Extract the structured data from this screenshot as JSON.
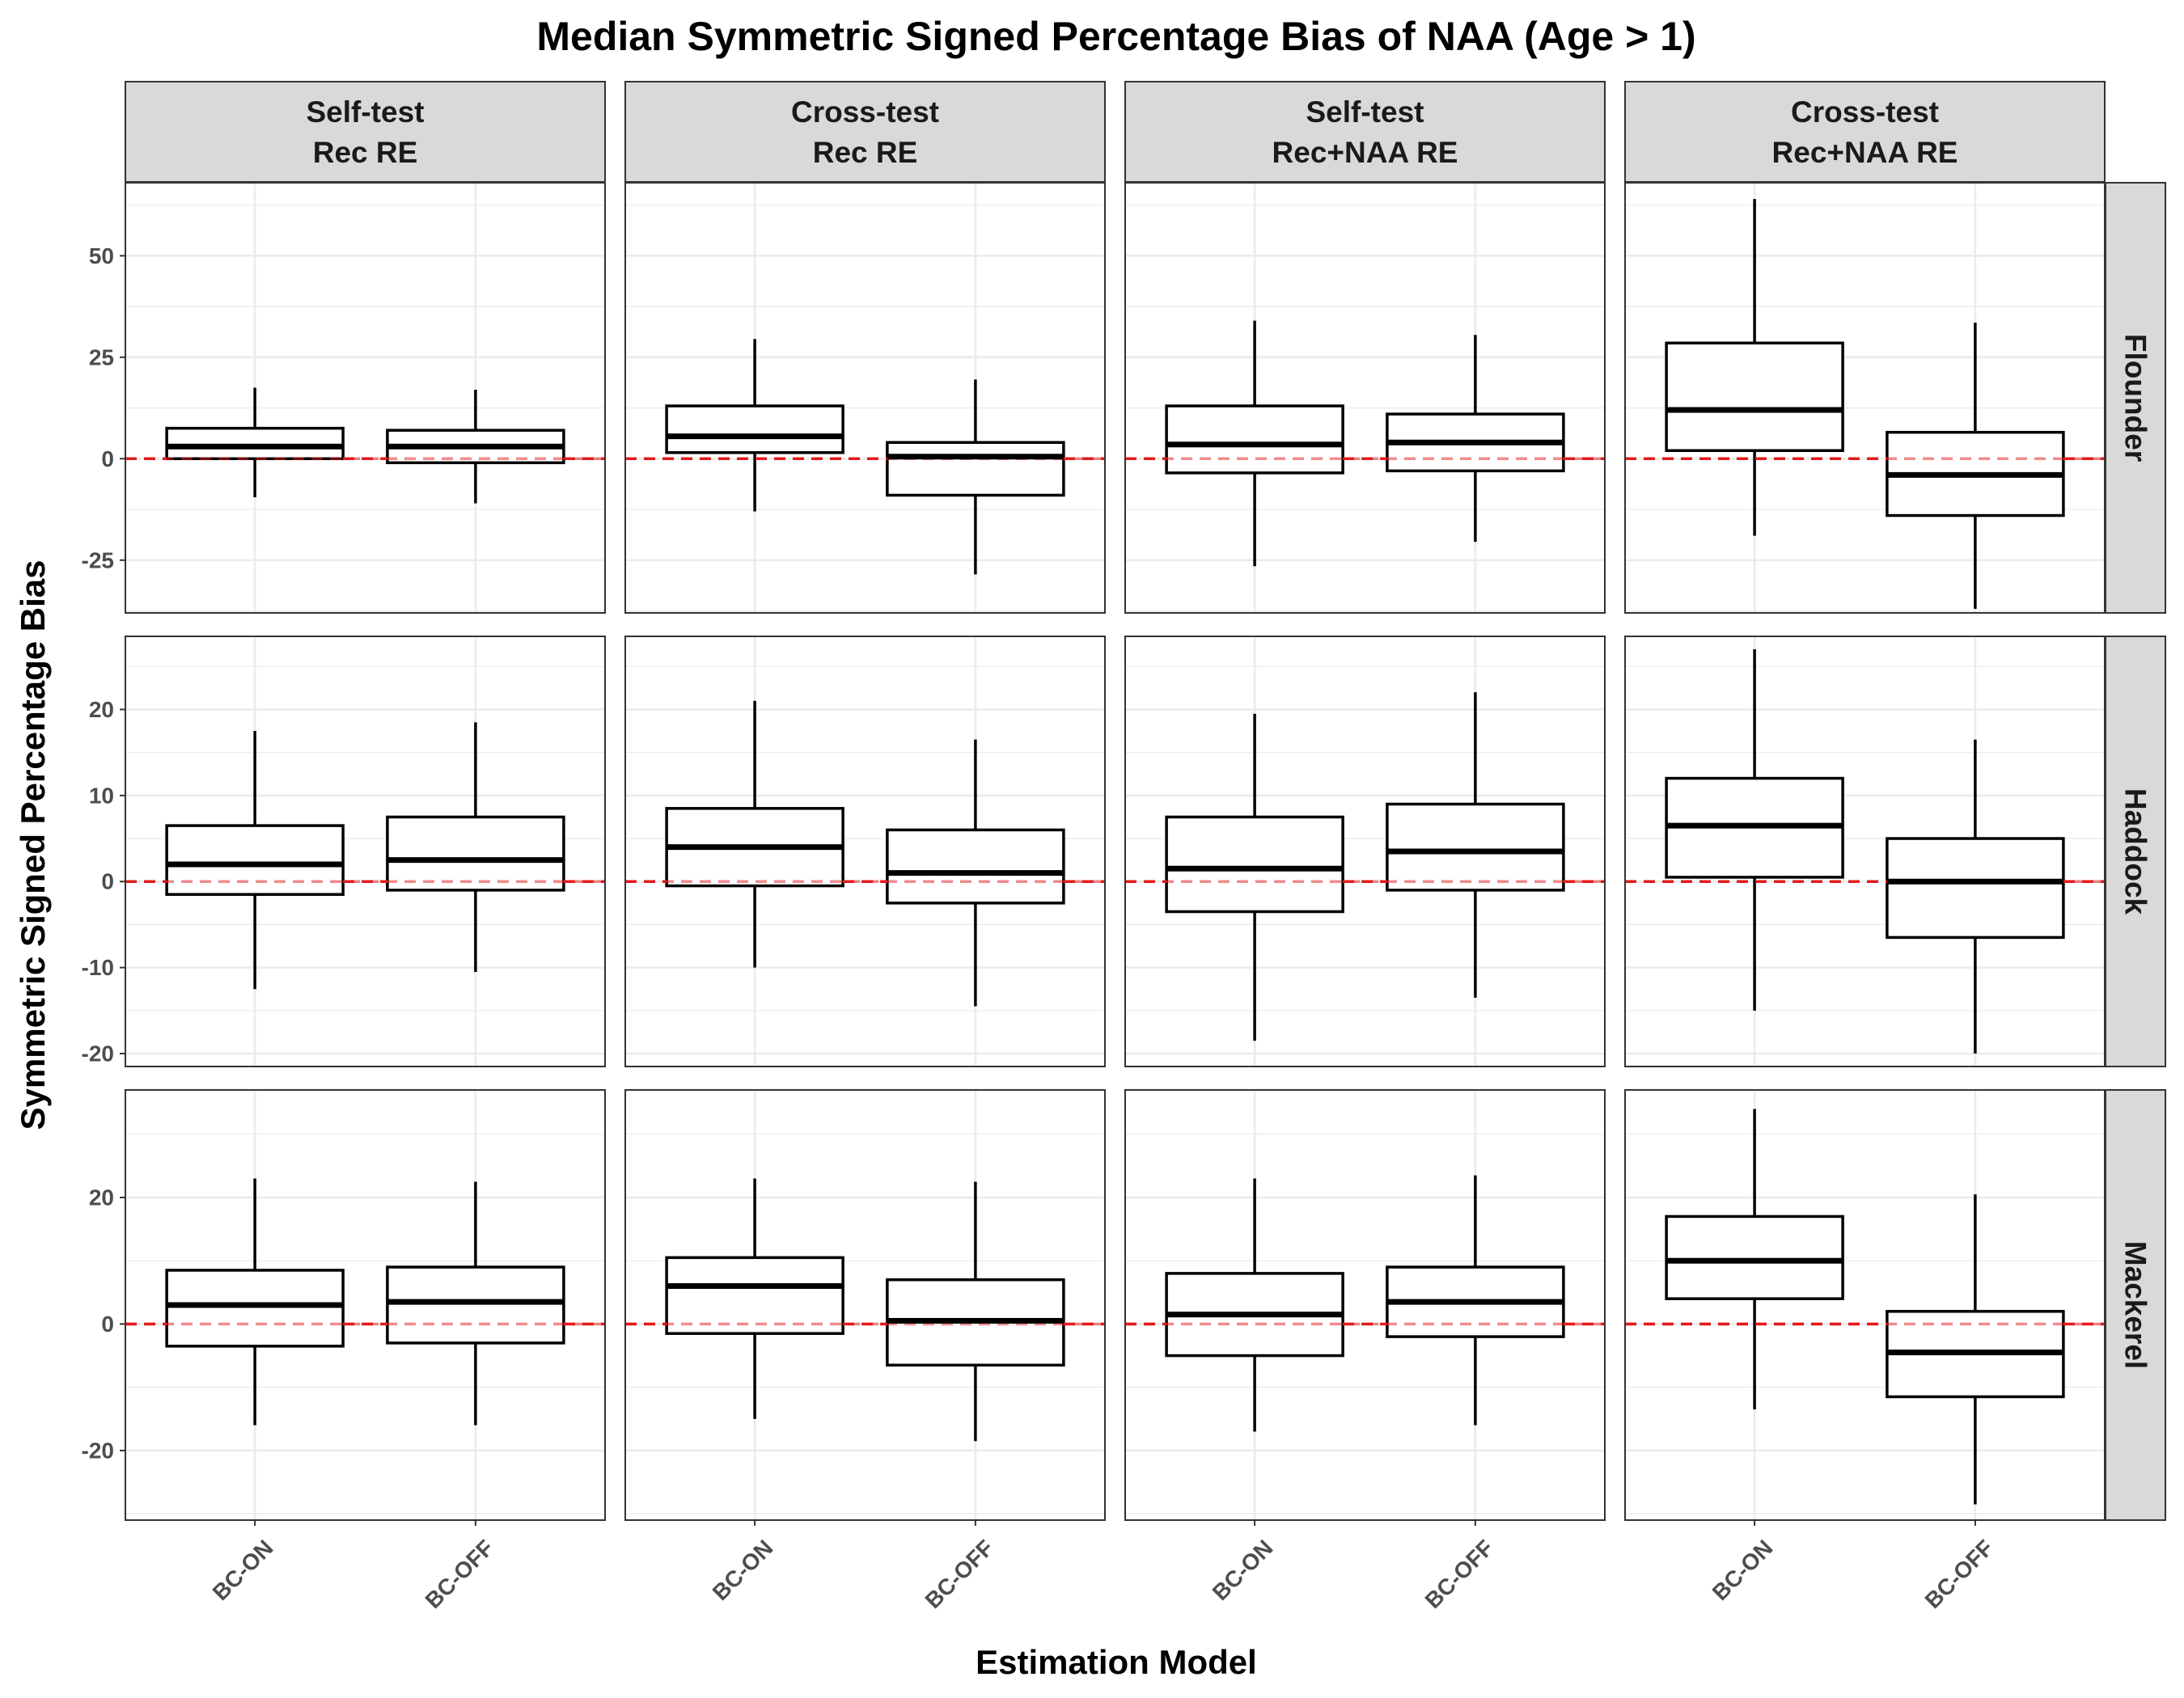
{
  "chart_data": {
    "type": "boxplot",
    "title": "Median Symmetric Signed Percentage Bias of NAA (Age > 1)",
    "xlabel": "Estimation Model",
    "ylabel": "Symmetric Signed Percentage Bias",
    "categories": [
      "BC-ON",
      "BC-OFF"
    ],
    "columns": [
      {
        "line1": "Self-test",
        "line2": "Rec RE"
      },
      {
        "line1": "Cross-test",
        "line2": "Rec RE"
      },
      {
        "line1": "Self-test",
        "line2": "Rec+NAA RE"
      },
      {
        "line1": "Cross-test",
        "line2": "Rec+NAA RE"
      }
    ],
    "rows": [
      {
        "name": "Flounder",
        "ylim": [
          -38,
          68
        ],
        "ticks": [
          -25,
          0,
          25,
          50
        ],
        "boxes": [
          [
            {
              "whisker_low": -9.5,
              "q1": 0,
              "median": 3,
              "q3": 7.5,
              "whisker_high": 17.5
            },
            {
              "whisker_low": -11,
              "q1": -1,
              "median": 3,
              "q3": 7,
              "whisker_high": 17
            }
          ],
          [
            {
              "whisker_low": -13,
              "q1": 1.5,
              "median": 5.5,
              "q3": 13,
              "whisker_high": 29.5
            },
            {
              "whisker_low": -28.5,
              "q1": -9,
              "median": 0.5,
              "q3": 4,
              "whisker_high": 19.5
            }
          ],
          [
            {
              "whisker_low": -26.5,
              "q1": -3.5,
              "median": 3.5,
              "q3": 13,
              "whisker_high": 34
            },
            {
              "whisker_low": -20.5,
              "q1": -3,
              "median": 4,
              "q3": 11,
              "whisker_high": 30.5
            }
          ],
          [
            {
              "whisker_low": -19,
              "q1": 2,
              "median": 12,
              "q3": 28.5,
              "whisker_high": 64
            },
            {
              "whisker_low": -37,
              "q1": -14,
              "median": -4,
              "q3": 6.5,
              "whisker_high": 33.5
            }
          ]
        ]
      },
      {
        "name": "Haddock",
        "ylim": [
          -21.5,
          28.5
        ],
        "ticks": [
          -20,
          -10,
          0,
          10,
          20
        ],
        "boxes": [
          [
            {
              "whisker_low": -12.5,
              "q1": -1.5,
              "median": 2,
              "q3": 6.5,
              "whisker_high": 17.5
            },
            {
              "whisker_low": -10.5,
              "q1": -1,
              "median": 2.5,
              "q3": 7.5,
              "whisker_high": 18.5
            }
          ],
          [
            {
              "whisker_low": -10,
              "q1": -0.5,
              "median": 4,
              "q3": 8.5,
              "whisker_high": 21
            },
            {
              "whisker_low": -14.5,
              "q1": -2.5,
              "median": 1,
              "q3": 6,
              "whisker_high": 16.5
            }
          ],
          [
            {
              "whisker_low": -18.5,
              "q1": -3.5,
              "median": 1.5,
              "q3": 7.5,
              "whisker_high": 19.5
            },
            {
              "whisker_low": -13.5,
              "q1": -1,
              "median": 3.5,
              "q3": 9,
              "whisker_high": 22
            }
          ],
          [
            {
              "whisker_low": -15,
              "q1": 0.5,
              "median": 6.5,
              "q3": 12,
              "whisker_high": 27
            },
            {
              "whisker_low": -20,
              "q1": -6.5,
              "median": 0,
              "q3": 5,
              "whisker_high": 16.5
            }
          ]
        ]
      },
      {
        "name": "Mackerel",
        "ylim": [
          -31,
          37
        ],
        "ticks": [
          -20,
          0,
          20
        ],
        "boxes": [
          [
            {
              "whisker_low": -16,
              "q1": -3.5,
              "median": 3,
              "q3": 8.5,
              "whisker_high": 23
            },
            {
              "whisker_low": -16,
              "q1": -3,
              "median": 3.5,
              "q3": 9,
              "whisker_high": 22.5
            }
          ],
          [
            {
              "whisker_low": -15,
              "q1": -1.5,
              "median": 6,
              "q3": 10.5,
              "whisker_high": 23
            },
            {
              "whisker_low": -18.5,
              "q1": -6.5,
              "median": 0.5,
              "q3": 7,
              "whisker_high": 22.5
            }
          ],
          [
            {
              "whisker_low": -17,
              "q1": -5,
              "median": 1.5,
              "q3": 8,
              "whisker_high": 23
            },
            {
              "whisker_low": -16,
              "q1": -2,
              "median": 3.5,
              "q3": 9,
              "whisker_high": 23.5
            }
          ],
          [
            {
              "whisker_low": -13.5,
              "q1": 4,
              "median": 10,
              "q3": 17,
              "whisker_high": 34
            },
            {
              "whisker_low": -28.5,
              "q1": -11.5,
              "median": -4.5,
              "q3": 2,
              "whisker_high": 20.5
            }
          ]
        ]
      }
    ],
    "reference_line": {
      "y": 0,
      "color": "#e41a1c",
      "style": "dashed"
    },
    "grid": true,
    "colors": {
      "box_fill": "#ffffff",
      "box_stroke": "#000000",
      "strip_fill": "#d9d9d9",
      "gridline": "#ebebeb",
      "tick_text": "#4d4d4d"
    }
  }
}
